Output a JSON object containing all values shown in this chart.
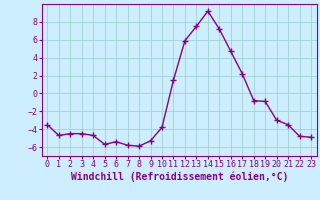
{
  "x": [
    0,
    1,
    2,
    3,
    4,
    5,
    6,
    7,
    8,
    9,
    10,
    11,
    12,
    13,
    14,
    15,
    16,
    17,
    18,
    19,
    20,
    21,
    22,
    23
  ],
  "y": [
    -3.5,
    -4.7,
    -4.5,
    -4.5,
    -4.7,
    -5.7,
    -5.4,
    -5.8,
    -5.9,
    -5.3,
    -3.8,
    1.5,
    5.9,
    7.5,
    9.2,
    7.2,
    4.7,
    2.2,
    -0.8,
    -0.9,
    -3.0,
    -3.5,
    -4.8,
    -4.9
  ],
  "line_color": "#880088",
  "marker": "+",
  "marker_size": 4,
  "linewidth": 1.0,
  "xlabel": "Windchill (Refroidissement éolien,°C)",
  "xlabel_fontsize": 7,
  "xlim": [
    -0.5,
    23.5
  ],
  "ylim": [
    -7,
    10
  ],
  "yticks": [
    -6,
    -4,
    -2,
    0,
    2,
    4,
    6,
    8
  ],
  "xticks": [
    0,
    1,
    2,
    3,
    4,
    5,
    6,
    7,
    8,
    9,
    10,
    11,
    12,
    13,
    14,
    15,
    16,
    17,
    18,
    19,
    20,
    21,
    22,
    23
  ],
  "tick_fontsize": 6,
  "background_color": "#cceeff",
  "grid_color": "#99cccc",
  "spine_color": "#880088"
}
